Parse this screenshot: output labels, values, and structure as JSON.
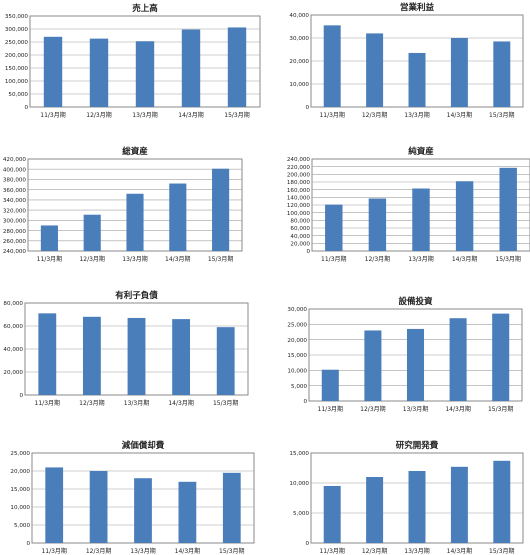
{
  "colors": {
    "bar": "#4a7ebb",
    "grid": "#a0a0a0",
    "frame": "#8a8a8a"
  },
  "chart_data": [
    {
      "type": "bar",
      "title": "売上高",
      "categories": [
        "11/3月期",
        "12/3月期",
        "13/3月期",
        "14/3月期",
        "15/3月期"
      ],
      "values": [
        270000,
        263000,
        253000,
        298000,
        306000
      ],
      "ylim": [
        0,
        350000
      ],
      "yticks": [
        0,
        50000,
        100000,
        150000,
        200000,
        250000,
        300000,
        350000
      ],
      "ytick_labels": [
        "0",
        "50,000",
        "100,000",
        "150,000",
        "200,000",
        "250,000",
        "300,000",
        "350,000"
      ],
      "grid": true
    },
    {
      "type": "bar",
      "title": "営業利益",
      "categories": [
        "11/3月期",
        "12/3月期",
        "13/3月期",
        "14/3月期",
        "15/3月期"
      ],
      "values": [
        35500,
        32000,
        23500,
        30000,
        28500
      ],
      "ylim": [
        0,
        40000
      ],
      "yticks": [
        0,
        10000,
        20000,
        30000,
        40000
      ],
      "ytick_labels": [
        "0",
        "10,000",
        "20,000",
        "30,000",
        "40,000"
      ],
      "grid": true
    },
    {
      "type": "bar",
      "title": "総資産",
      "categories": [
        "11/3月期",
        "12/3月期",
        "13/3月期",
        "14/3月期",
        "15/3月期"
      ],
      "values": [
        290000,
        311000,
        352000,
        372000,
        401000
      ],
      "ylim": [
        240000,
        420000
      ],
      "yticks": [
        240000,
        260000,
        280000,
        300000,
        320000,
        340000,
        360000,
        380000,
        400000,
        420000
      ],
      "ytick_labels": [
        "240,000",
        "260,000",
        "280,000",
        "300,000",
        "320,000",
        "340,000",
        "360,000",
        "380,000",
        "400,000",
        "420,000"
      ],
      "grid": true
    },
    {
      "type": "bar",
      "title": "純資産",
      "categories": [
        "11/3月期",
        "12/3月期",
        "13/3月期",
        "14/3月期",
        "15/3月期"
      ],
      "values": [
        121000,
        137000,
        163000,
        182000,
        217000
      ],
      "ylim": [
        0,
        240000
      ],
      "yticks": [
        0,
        20000,
        40000,
        60000,
        80000,
        100000,
        120000,
        140000,
        160000,
        180000,
        200000,
        220000,
        240000
      ],
      "ytick_labels": [
        "0",
        "20,000",
        "40,000",
        "60,000",
        "80,000",
        "100,000",
        "120,000",
        "140,000",
        "160,000",
        "180,000",
        "200,000",
        "220,000",
        "240,000"
      ],
      "grid": true
    },
    {
      "type": "bar",
      "title": "有利子負債",
      "categories": [
        "11/3月期",
        "12/3月期",
        "13/3月期",
        "14/3月期",
        "15/3月期"
      ],
      "values": [
        71000,
        68000,
        67000,
        66000,
        59000
      ],
      "ylim": [
        0,
        80000
      ],
      "yticks": [
        0,
        20000,
        40000,
        60000,
        80000
      ],
      "ytick_labels": [
        "0",
        "20,000",
        "40,000",
        "60,000",
        "80,000"
      ],
      "grid": true
    },
    {
      "type": "bar",
      "title": "設備投資",
      "categories": [
        "11/3月期",
        "12/3月期",
        "13/3月期",
        "14/3月期",
        "15/3月期"
      ],
      "values": [
        10200,
        23000,
        23500,
        27000,
        28500
      ],
      "ylim": [
        0,
        30000
      ],
      "yticks": [
        0,
        5000,
        10000,
        15000,
        20000,
        25000,
        30000
      ],
      "ytick_labels": [
        "0",
        "5,000",
        "10,000",
        "15,000",
        "20,000",
        "25,000",
        "30,000"
      ],
      "grid": true
    },
    {
      "type": "bar",
      "title": "減価償却費",
      "categories": [
        "11/3月期",
        "12/3月期",
        "13/3月期",
        "14/3月期",
        "15/3月期"
      ],
      "values": [
        21000,
        20000,
        18000,
        17000,
        19500
      ],
      "ylim": [
        0,
        25000
      ],
      "yticks": [
        0,
        5000,
        10000,
        15000,
        20000,
        25000
      ],
      "ytick_labels": [
        "0",
        "5,000",
        "10,000",
        "15,000",
        "20,000",
        "25,000"
      ],
      "grid": true
    },
    {
      "type": "bar",
      "title": "研究開発費",
      "categories": [
        "11/3月期",
        "12/3月期",
        "13/3月期",
        "14/3月期",
        "15/3月期"
      ],
      "values": [
        9500,
        11000,
        12000,
        12700,
        13700
      ],
      "ylim": [
        0,
        15000
      ],
      "yticks": [
        0,
        5000,
        10000,
        15000
      ],
      "ytick_labels": [
        "0",
        "5,000",
        "10,000",
        "15,000"
      ],
      "grid": true
    }
  ]
}
